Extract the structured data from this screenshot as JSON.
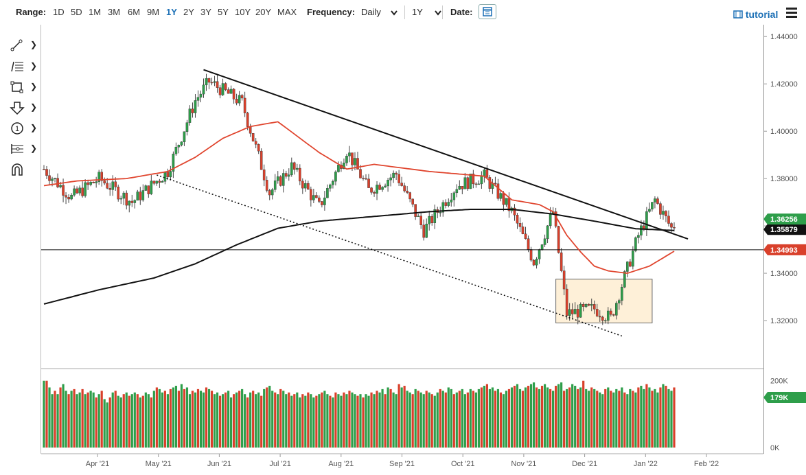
{
  "toolbar": {
    "range_label": "Range:",
    "ranges": [
      "1D",
      "5D",
      "1M",
      "3M",
      "6M",
      "9M",
      "1Y",
      "2Y",
      "3Y",
      "5Y",
      "10Y",
      "20Y",
      "MAX"
    ],
    "active_range": "1Y",
    "frequency_label": "Frequency:",
    "frequency_value": "Daily",
    "period_value": "1Y",
    "date_label": "Date:",
    "tutorial_label": "tutorial"
  },
  "icons": [
    "trendline-icon",
    "fibonacci-icon",
    "rectangle-icon",
    "arrow-down-icon",
    "number-marker-icon",
    "pitchfork-icon",
    "magnet-icon",
    "calendar-icon",
    "menu-icon",
    "chevron-down-icon"
  ],
  "colors": {
    "up": "#2e9e4a",
    "down": "#d9402b",
    "ma50": "#e0452e",
    "ma200": "#111111",
    "accent": "#1a6fb5",
    "box_fill": "#fde9c8",
    "box_stroke": "#666666"
  },
  "chart_data": {
    "type": "candlestick",
    "frequency": "Daily",
    "range": "1Y",
    "x_tick_labels": [
      "Apr '21",
      "May '21",
      "Jun '21",
      "Jul '21",
      "Aug '21",
      "Sep '21",
      "Oct '21",
      "Nov '21",
      "Dec '21",
      "Jan '22",
      "Feb '22"
    ],
    "y_tick_labels": [
      "1.44000",
      "1.42000",
      "1.40000",
      "1.38000",
      "1.36000",
      "1.34000",
      "1.32000"
    ],
    "ylim": [
      1.3,
      1.445
    ],
    "grid": false,
    "price_labels": [
      {
        "text": "1.36256",
        "color": "#2e9e4a"
      },
      {
        "text": "1.35879",
        "color": "#111111"
      },
      {
        "text": "1.34993",
        "color": "#d9402b"
      }
    ],
    "horizontal_line": 1.3499,
    "moving_averages": [
      {
        "color": "#e0452e",
        "x": [
          0,
          12,
          30,
          45,
          55,
          65,
          75,
          85,
          100,
          110,
          120,
          140,
          160,
          170,
          180,
          185,
          190,
          195,
          200,
          205,
          212,
          220,
          230
        ],
        "y": [
          1.377,
          1.379,
          1.38,
          1.383,
          1.389,
          1.397,
          1.402,
          1.404,
          1.391,
          1.384,
          1.386,
          1.383,
          1.381,
          1.371,
          1.369,
          1.366,
          1.356,
          1.349,
          1.343,
          1.341,
          1.34,
          1.343,
          1.35
        ]
      },
      {
        "color": "#111111",
        "x": [
          0,
          20,
          40,
          55,
          70,
          85,
          100,
          120,
          140,
          155,
          170,
          185,
          200,
          215,
          230
        ],
        "y": [
          1.327,
          1.333,
          1.338,
          1.344,
          1.352,
          1.359,
          1.362,
          1.364,
          1.366,
          1.367,
          1.367,
          1.365,
          1.362,
          1.3588,
          1.358
        ]
      }
    ],
    "trend_lines": [
      {
        "style": "solid",
        "x": [
          58,
          234
        ],
        "y": [
          1.426,
          1.3545
        ]
      },
      {
        "style": "dotted",
        "x": [
          41,
          210
        ],
        "y": [
          1.3815,
          1.3135
        ]
      }
    ],
    "box": {
      "x": [
        186,
        221
      ],
      "y": [
        1.3375,
        1.319
      ]
    },
    "volume_label": "179K",
    "volume_axis": [
      "0K",
      "200K"
    ],
    "volume": [
      200,
      200,
      180,
      160,
      170,
      160,
      180,
      190,
      170,
      160,
      170,
      175,
      160,
      165,
      175,
      160,
      165,
      170,
      165,
      150,
      160,
      170,
      145,
      135,
      150,
      165,
      170,
      155,
      150,
      160,
      165,
      155,
      160,
      165,
      160,
      150,
      155,
      165,
      160,
      150,
      170,
      180,
      175,
      165,
      170,
      160,
      175,
      180,
      185,
      170,
      190,
      175,
      180,
      160,
      170,
      165,
      175,
      170,
      165,
      180,
      175,
      170,
      160,
      165,
      155,
      160,
      165,
      170,
      150,
      160,
      165,
      170,
      175,
      160,
      150,
      165,
      170,
      160,
      165,
      155,
      175,
      180,
      185,
      170,
      165,
      160,
      175,
      170,
      160,
      165,
      155,
      160,
      165,
      150,
      160,
      155,
      165,
      160,
      150,
      155,
      160,
      165,
      170,
      160,
      155,
      150,
      165,
      160,
      155,
      165,
      160,
      170,
      165,
      160,
      155,
      160,
      150,
      160,
      155,
      165,
      160,
      170,
      165,
      175,
      160,
      180,
      175,
      165,
      160,
      190,
      180,
      185,
      170,
      165,
      160,
      175,
      170,
      165,
      160,
      170,
      165,
      160,
      155,
      165,
      175,
      170,
      165,
      180,
      175,
      160,
      165,
      170,
      175,
      160,
      165,
      175,
      170,
      165,
      175,
      180,
      185,
      190,
      175,
      180,
      170,
      175,
      165,
      160,
      170,
      175,
      180,
      185,
      190,
      175,
      170,
      180,
      185,
      190,
      195,
      180,
      175,
      185,
      190,
      180,
      175,
      170,
      185,
      190,
      195,
      170,
      175,
      180,
      190,
      185,
      175,
      180,
      200,
      175,
      170,
      180,
      175,
      170,
      165,
      160,
      175,
      180,
      170,
      165,
      175,
      170,
      180,
      165,
      160,
      175,
      170,
      165,
      180,
      185,
      175,
      190,
      180,
      170,
      175,
      165,
      180,
      190,
      185,
      175,
      170,
      180
    ]
  }
}
